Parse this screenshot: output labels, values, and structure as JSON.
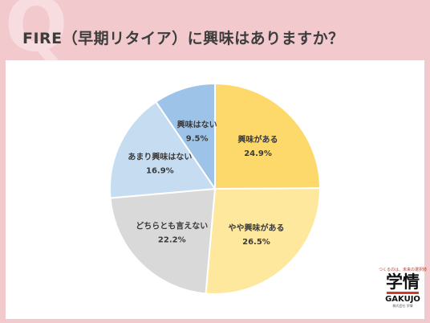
{
  "header": {
    "bg_letter": "Q",
    "title": "FIRE（早期リタイア）に興味はありますか？"
  },
  "chart_data": {
    "type": "pie",
    "start": "12 o'clock",
    "direction": "clockwise",
    "slices": [
      {
        "label": "興味がある",
        "value": 24.9,
        "display": "24.9%",
        "color": "#fdd86a"
      },
      {
        "label": "やや興味がある",
        "value": 26.5,
        "display": "26.5%",
        "color": "#fde89e"
      },
      {
        "label": "どちらとも言えない",
        "value": 22.2,
        "display": "22.2%",
        "color": "#d9d9d9"
      },
      {
        "label": "あまり興味はない",
        "value": 16.9,
        "display": "16.9%",
        "color": "#c6dcf1"
      },
      {
        "label": "興味はない",
        "value": 9.5,
        "display": "9.5%",
        "color": "#9dc3e8"
      }
    ]
  },
  "logo": {
    "tagline": "つくるのは、未来の選択肢",
    "mark": "学情",
    "name": "GAKUJO",
    "sub": "株式会社 学情"
  }
}
